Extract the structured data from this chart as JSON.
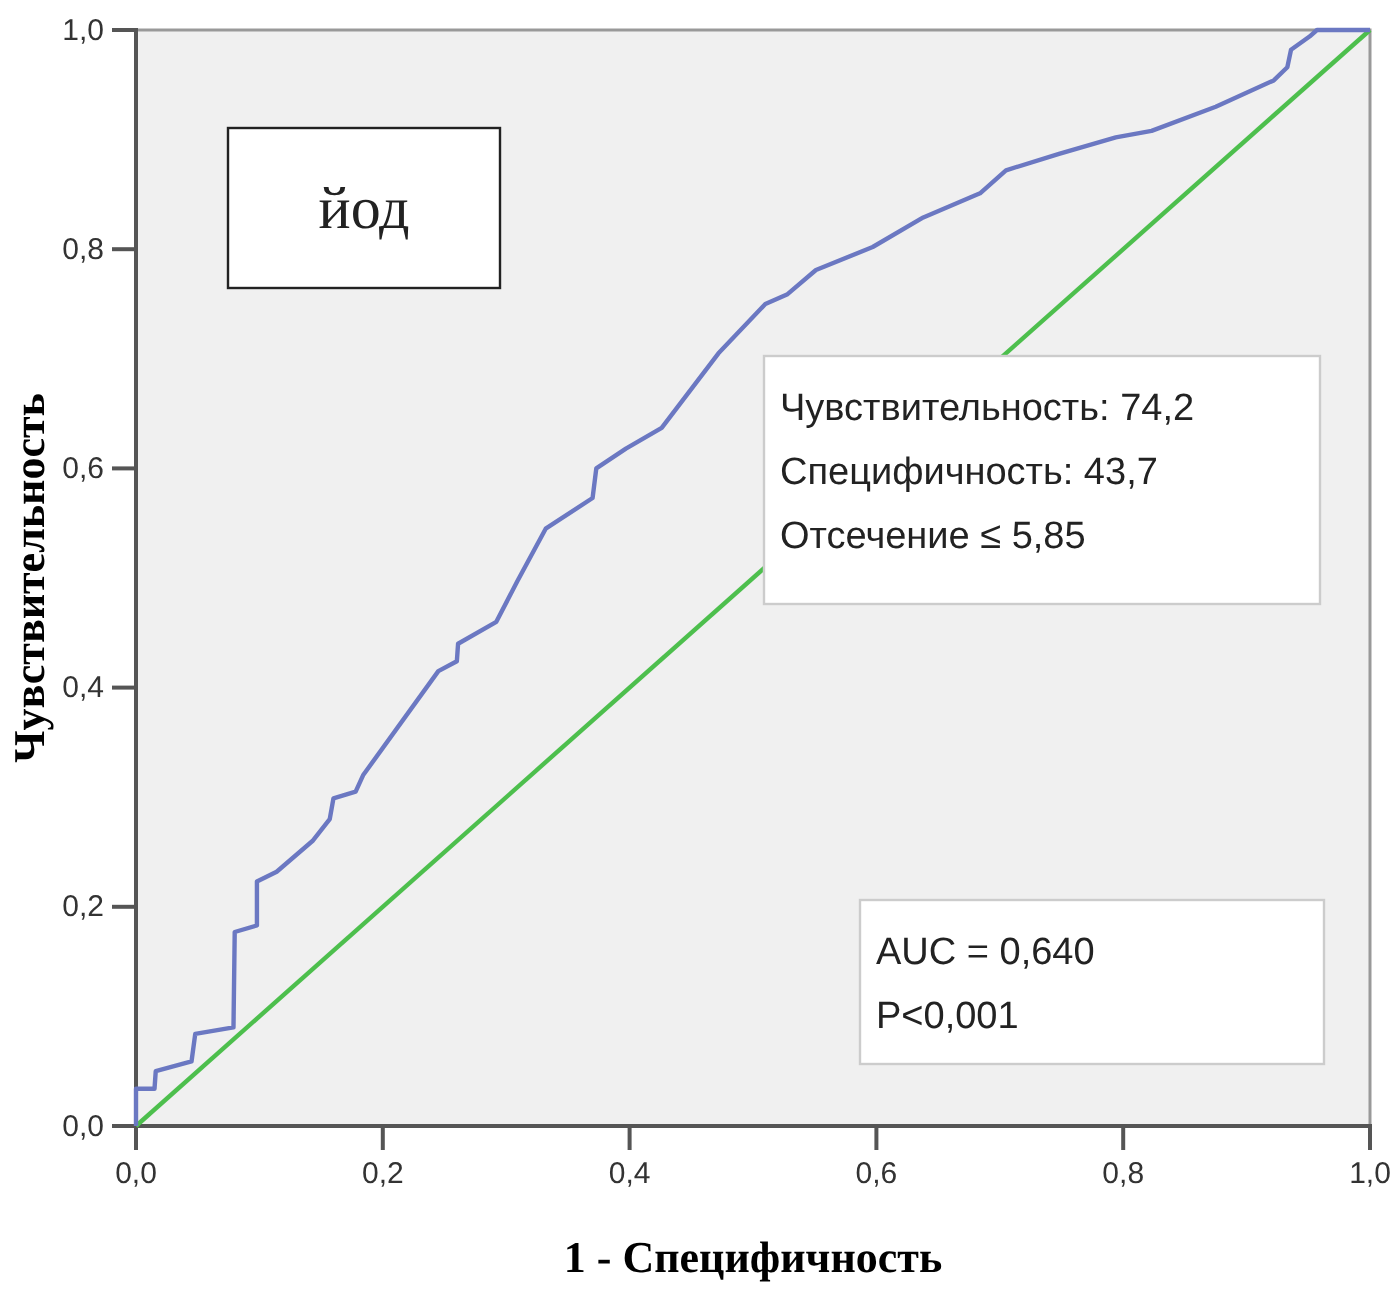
{
  "chart_data": {
    "type": "line",
    "xlabel": "1 - Специфичность",
    "ylabel": "Чувствительность",
    "xlim": [
      0,
      1
    ],
    "ylim": [
      0,
      1
    ],
    "xticks": [
      {
        "value": 0,
        "label": "0,0"
      },
      {
        "value": 0.2,
        "label": "0,2"
      },
      {
        "value": 0.4,
        "label": "0,4"
      },
      {
        "value": 0.6,
        "label": "0,6"
      },
      {
        "value": 0.8,
        "label": "0,8"
      },
      {
        "value": 1,
        "label": "1,0"
      }
    ],
    "yticks": [
      {
        "value": 0,
        "label": "0,0"
      },
      {
        "value": 0.2,
        "label": "0,2"
      },
      {
        "value": 0.4,
        "label": "0,4"
      },
      {
        "value": 0.6,
        "label": "0,6"
      },
      {
        "value": 0.8,
        "label": "0,8"
      },
      {
        "value": 1,
        "label": "1,0"
      }
    ],
    "grid": false,
    "marker": "none",
    "line_style": "solid",
    "series": [
      {
        "color": "#6b78c2",
        "x": [
          0,
          0,
          0.015,
          0.016,
          0.045,
          0.048,
          0.079,
          0.08,
          0.098,
          0.098,
          0.114,
          0.143,
          0.157,
          0.16,
          0.178,
          0.184,
          0.245,
          0.26,
          0.261,
          0.292,
          0.309,
          0.332,
          0.37,
          0.373,
          0.397,
          0.426,
          0.472,
          0.51,
          0.528,
          0.551,
          0.597,
          0.638,
          0.684,
          0.705,
          0.748,
          0.794,
          0.823,
          0.875,
          0.922,
          0.933,
          0.936,
          0.951,
          0.957,
          1
        ],
        "values": [
          0,
          0.034,
          0.034,
          0.05,
          0.059,
          0.084,
          0.09,
          0.177,
          0.183,
          0.223,
          0.232,
          0.26,
          0.28,
          0.299,
          0.305,
          0.32,
          0.415,
          0.424,
          0.44,
          0.46,
          0.497,
          0.545,
          0.573,
          0.6,
          0.618,
          0.637,
          0.705,
          0.75,
          0.759,
          0.781,
          0.802,
          0.829,
          0.851,
          0.872,
          0.887,
          0.902,
          0.908,
          0.93,
          0.954,
          0.966,
          0.982,
          0.994,
          1,
          1
        ]
      },
      {
        "color": "#4dbf4d",
        "x": [
          0,
          1
        ],
        "values": [
          0,
          1
        ]
      }
    ],
    "annotations": [
      "йод",
      "Чувствительность: 74,2\nСпецифичность: 43,7\nОтсечение ≤ 5,85",
      "AUC = 0,640\nP<0,001"
    ]
  }
}
